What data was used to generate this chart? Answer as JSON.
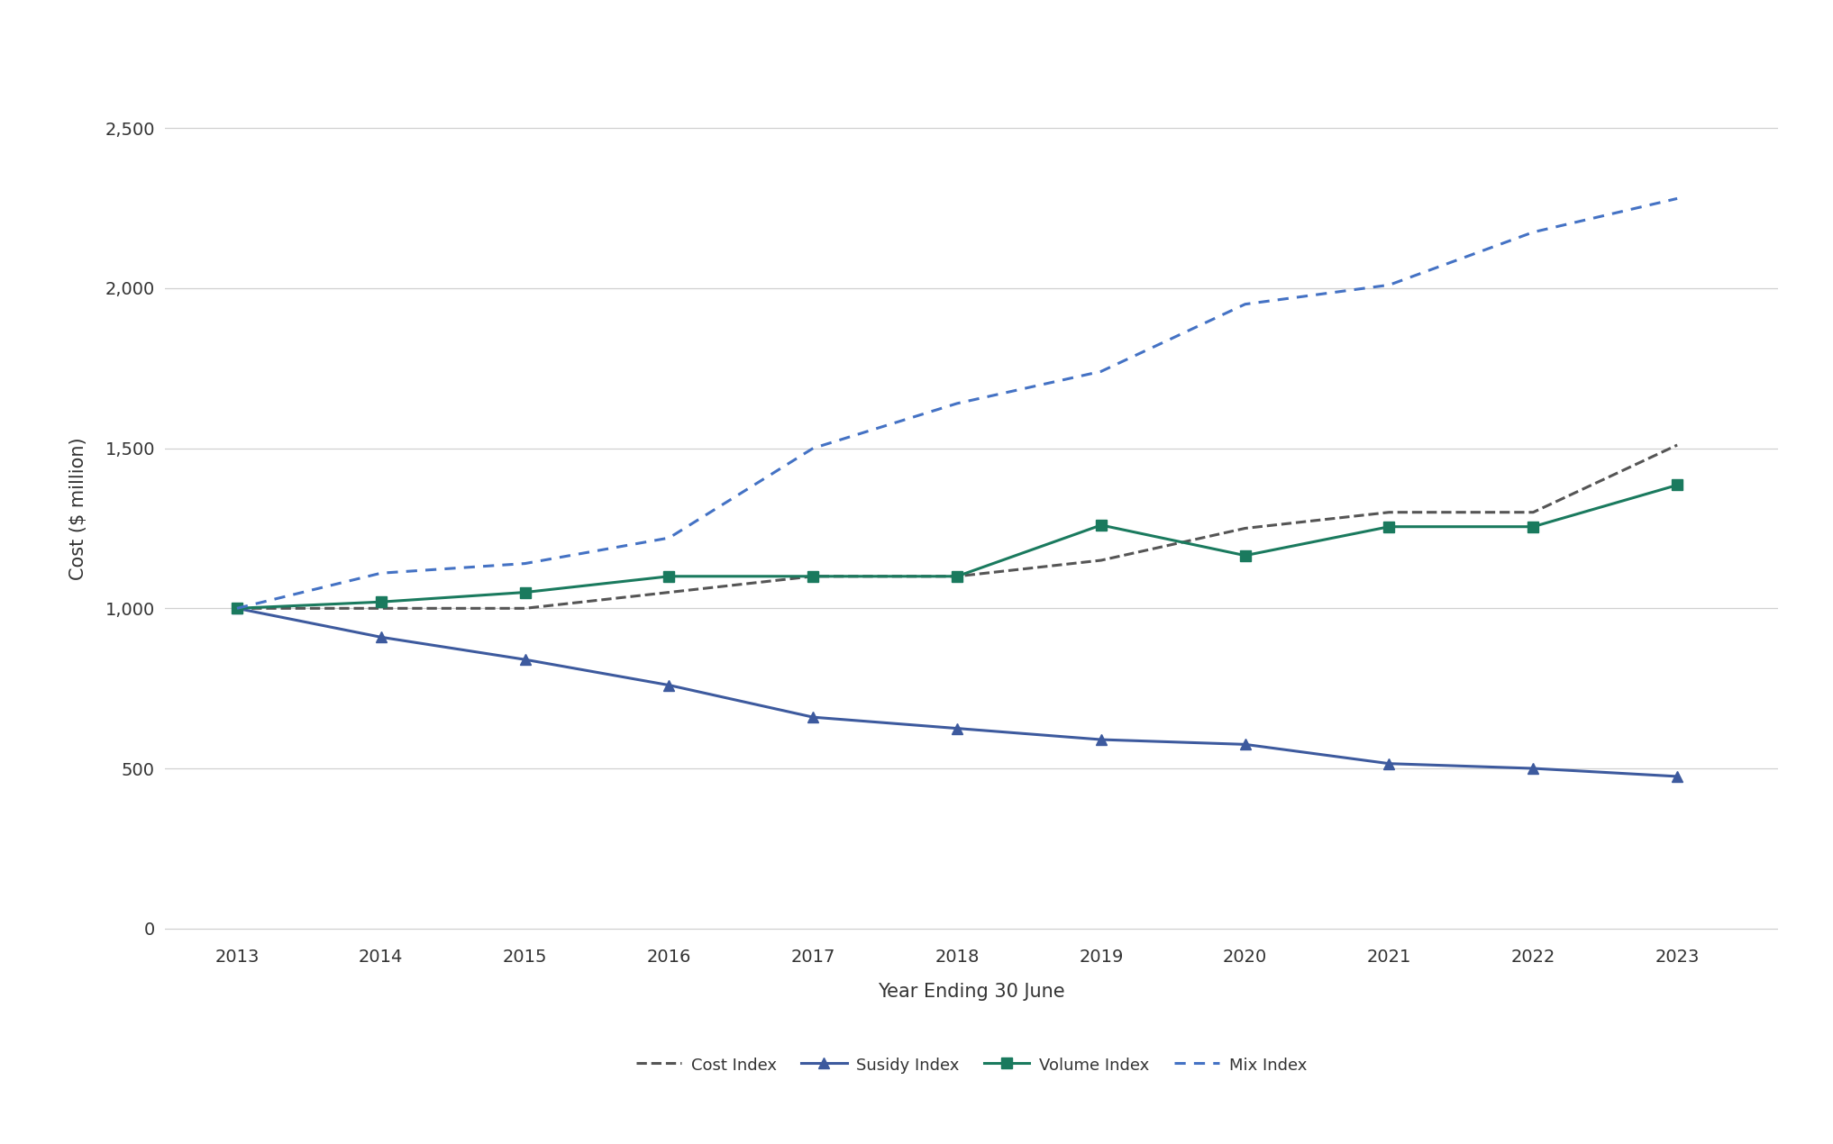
{
  "years": [
    2013,
    2014,
    2015,
    2016,
    2017,
    2018,
    2019,
    2020,
    2021,
    2022,
    2023
  ],
  "cost_index": [
    1000,
    1000,
    1000,
    1050,
    1100,
    1100,
    1150,
    1250,
    1300,
    1300,
    1510
  ],
  "subsidy_index": [
    1000,
    910,
    840,
    760,
    660,
    625,
    590,
    575,
    515,
    500,
    475
  ],
  "volume_index": [
    1000,
    1020,
    1050,
    1100,
    1100,
    1100,
    1260,
    1165,
    1255,
    1255,
    1385
  ],
  "mix_index": [
    1000,
    1110,
    1140,
    1220,
    1500,
    1640,
    1740,
    1950,
    2010,
    2175,
    2280
  ],
  "cost_index_color": "#555555",
  "subsidy_index_color": "#3d5a9e",
  "volume_index_color": "#1a7a5e",
  "mix_index_color": "#4472c4",
  "ylabel": "Cost ($ million)",
  "xlabel": "Year Ending 30 June",
  "yticks": [
    0,
    500,
    1000,
    1500,
    2000,
    2500
  ],
  "ylim": [
    -30,
    2650
  ],
  "xlim": [
    2012.5,
    2023.7
  ],
  "background_color": "#ffffff",
  "grid_color": "#d0d0d0",
  "legend_labels": [
    "Cost Index",
    "Susidy Index",
    "Volume Index",
    "Mix Index"
  ],
  "label_fontsize": 15,
  "tick_fontsize": 14,
  "legend_fontsize": 13
}
